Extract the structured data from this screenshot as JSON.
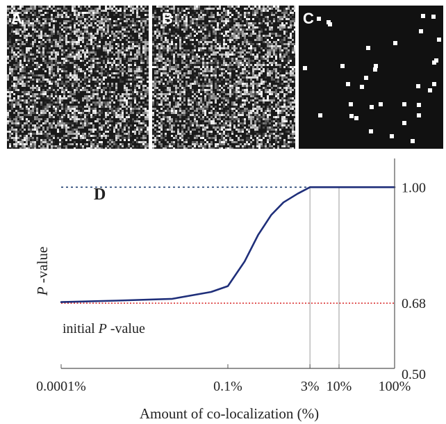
{
  "panels": [
    {
      "letter": "A",
      "kind": "noise"
    },
    {
      "letter": "B",
      "kind": "noise"
    },
    {
      "letter": "C",
      "kind": "sparse-dots"
    }
  ],
  "colors": {
    "curve": "#1f2f7a",
    "reference_top": "#1a3a6e",
    "reference_initial": "#d93030",
    "axis": "#555555",
    "panel_background": "#111111"
  },
  "chart_data": {
    "type": "line",
    "panel_label": "D",
    "xscale": "log",
    "xlabel": "Amount of co-localization (%)",
    "ylabel_italic": "P",
    "ylabel_rest": " -value",
    "xlim": [
      0.0001,
      100
    ],
    "ylim": [
      0.5,
      1.06
    ],
    "x_ticks": [
      {
        "value": 0.0001,
        "label": "0.0001%"
      },
      {
        "value": 0.1,
        "label": "0.1%"
      },
      {
        "value": 3,
        "label": "3%"
      },
      {
        "value": 10,
        "label": "10%"
      },
      {
        "value": 100,
        "label": "100%"
      }
    ],
    "y_ticks": [
      {
        "value": 1.0,
        "label": "1.00"
      },
      {
        "value": 0.68,
        "label": "0.68"
      },
      {
        "value": 0.5,
        "label": "0.50"
      }
    ],
    "vertical_gridlines_at": [
      3,
      10
    ],
    "reference_lines": [
      {
        "y": 1.0,
        "style": "dotted",
        "color": "#1a3a6e"
      },
      {
        "y": 0.68,
        "style": "dotted",
        "color": "#d93030",
        "label_italic": "P",
        "label_prefix": "initial ",
        "label_suffix": " -value"
      }
    ],
    "series": [
      {
        "x": [
          0.0001,
          0.001,
          0.01,
          0.05,
          0.1,
          0.2,
          0.35,
          0.6,
          1.0,
          1.8,
          3,
          10,
          100
        ],
        "y": [
          0.683,
          0.687,
          0.692,
          0.711,
          0.727,
          0.795,
          0.868,
          0.923,
          0.958,
          0.982,
          1.0,
          1.0,
          1.0
        ]
      }
    ]
  }
}
